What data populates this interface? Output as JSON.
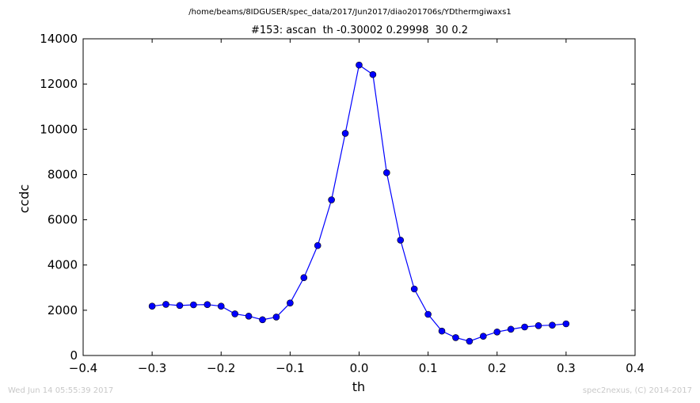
{
  "figure": {
    "path_title": "/home/beams/8IDGUSER/spec_data/2017/Jun2017/diao201706s/YDthermgiwaxs1",
    "timestamp": "Wed Jun 14 05:55:39 2017",
    "credit": "spec2nexus, (C) 2014-2017"
  },
  "chart_data": {
    "type": "line",
    "title": "#153: ascan  th -0.30002 0.29998  30 0.2",
    "xlabel": "th",
    "ylabel": "ccdc",
    "xlim": [
      -0.4,
      0.4
    ],
    "ylim": [
      0,
      14000
    ],
    "x_ticks": [
      -0.4,
      -0.3,
      -0.2,
      -0.1,
      0.0,
      0.1,
      0.2,
      0.3,
      0.4
    ],
    "x_tick_labels": [
      "−0.4",
      "−0.3",
      "−0.2",
      "−0.1",
      "0.0",
      "0.1",
      "0.2",
      "0.3",
      "0.4"
    ],
    "y_ticks": [
      0,
      2000,
      4000,
      6000,
      8000,
      10000,
      12000,
      14000
    ],
    "y_tick_labels": [
      "0",
      "2000",
      "4000",
      "6000",
      "8000",
      "10000",
      "12000",
      "14000"
    ],
    "grid": false,
    "legend": false,
    "series": [
      {
        "color": "#0000ff",
        "marker": "circle",
        "x": [
          -0.30002,
          -0.28002,
          -0.26002,
          -0.24002,
          -0.22002,
          -0.20002,
          -0.18002,
          -0.16002,
          -0.14002,
          -0.12002,
          -0.10002,
          -0.08002,
          -0.06002,
          -0.04002,
          -0.02002,
          -2e-05,
          0.01998,
          0.03998,
          0.05998,
          0.07998,
          0.09998,
          0.11998,
          0.13998,
          0.15998,
          0.17998,
          0.19998,
          0.21998,
          0.23998,
          0.25998,
          0.27998,
          0.29998
        ],
        "y": [
          2180,
          2260,
          2210,
          2240,
          2250,
          2180,
          1840,
          1740,
          1580,
          1700,
          2320,
          3440,
          4860,
          6880,
          9820,
          12840,
          12420,
          8080,
          5100,
          2940,
          1820,
          1080,
          790,
          630,
          850,
          1040,
          1160,
          1260,
          1320,
          1340,
          1400
        ]
      }
    ]
  }
}
